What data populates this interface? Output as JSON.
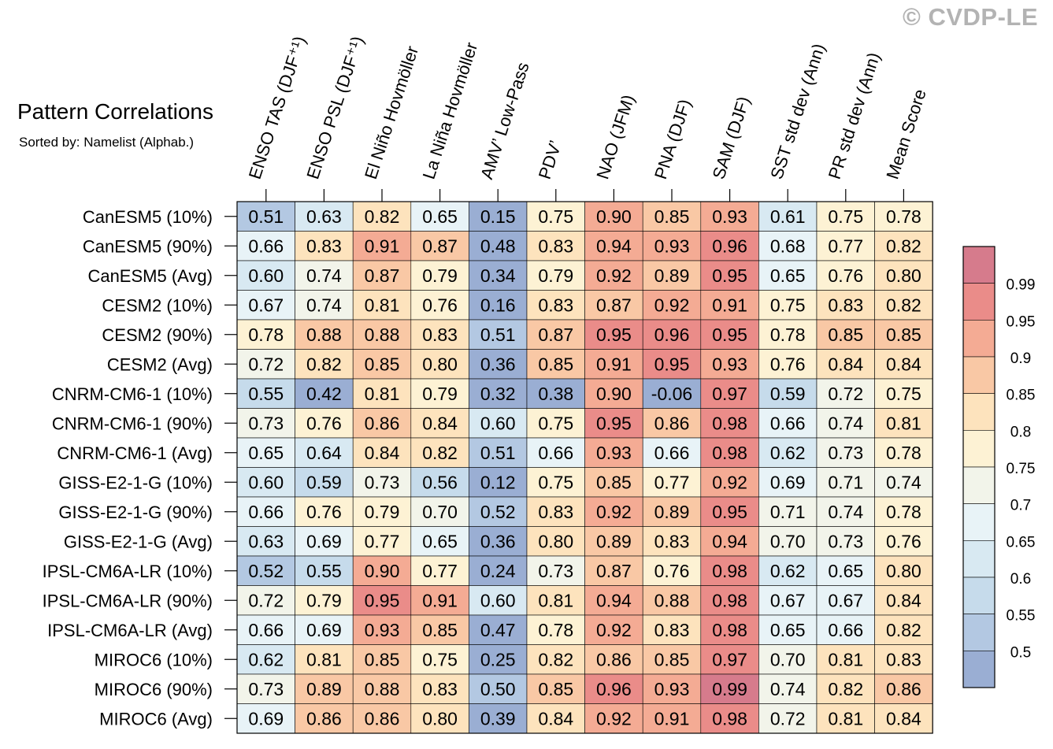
{
  "watermark": "© CVDP-LE",
  "chart_data": {
    "type": "heatmap",
    "title": "Pattern Correlations",
    "subtitle": "Sorted by: Namelist (Alphab.)",
    "columns": [
      "ENSO TAS (DJF⁺¹)",
      "ENSO PSL (DJF⁺¹)",
      "El Niño Hovmöller",
      "La Niña Hovmöller",
      "AMV’ Low-Pass",
      "PDV’",
      "NAO (JFM)",
      "PNA (DJF)",
      "SAM (DJF)",
      "SST std dev (Ann)",
      "PR std dev (Ann)",
      "Mean Score"
    ],
    "rows": [
      "CanESM5 (10%)",
      "CanESM5 (90%)",
      "CanESM5 (Avg)",
      "CESM2 (10%)",
      "CESM2 (90%)",
      "CESM2 (Avg)",
      "CNRM-CM6-1 (10%)",
      "CNRM-CM6-1 (90%)",
      "CNRM-CM6-1 (Avg)",
      "GISS-E2-1-G (10%)",
      "GISS-E2-1-G (90%)",
      "GISS-E2-1-G (Avg)",
      "IPSL-CM6A-LR (10%)",
      "IPSL-CM6A-LR (90%)",
      "IPSL-CM6A-LR (Avg)",
      "MIROC6 (10%)",
      "MIROC6 (90%)",
      "MIROC6 (Avg)"
    ],
    "values": [
      [
        "0.51",
        "0.63",
        "0.82",
        "0.65",
        "0.15",
        "0.75",
        "0.90",
        "0.85",
        "0.93",
        "0.61",
        "0.75",
        "0.78"
      ],
      [
        "0.66",
        "0.83",
        "0.91",
        "0.87",
        "0.48",
        "0.83",
        "0.94",
        "0.93",
        "0.96",
        "0.68",
        "0.77",
        "0.82"
      ],
      [
        "0.60",
        "0.74",
        "0.87",
        "0.79",
        "0.34",
        "0.79",
        "0.92",
        "0.89",
        "0.95",
        "0.65",
        "0.76",
        "0.80"
      ],
      [
        "0.67",
        "0.74",
        "0.81",
        "0.76",
        "0.16",
        "0.83",
        "0.87",
        "0.92",
        "0.91",
        "0.75",
        "0.83",
        "0.82"
      ],
      [
        "0.78",
        "0.88",
        "0.88",
        "0.83",
        "0.51",
        "0.87",
        "0.95",
        "0.96",
        "0.95",
        "0.78",
        "0.85",
        "0.85"
      ],
      [
        "0.72",
        "0.82",
        "0.85",
        "0.80",
        "0.36",
        "0.85",
        "0.91",
        "0.95",
        "0.93",
        "0.76",
        "0.84",
        "0.84"
      ],
      [
        "0.55",
        "0.42",
        "0.81",
        "0.79",
        "0.32",
        "0.38",
        "0.90",
        "-0.06",
        "0.97",
        "0.59",
        "0.72",
        "0.75"
      ],
      [
        "0.73",
        "0.76",
        "0.86",
        "0.84",
        "0.60",
        "0.75",
        "0.95",
        "0.86",
        "0.98",
        "0.66",
        "0.74",
        "0.81"
      ],
      [
        "0.65",
        "0.64",
        "0.84",
        "0.82",
        "0.51",
        "0.66",
        "0.93",
        "0.66",
        "0.98",
        "0.62",
        "0.73",
        "0.78"
      ],
      [
        "0.60",
        "0.59",
        "0.73",
        "0.56",
        "0.12",
        "0.75",
        "0.85",
        "0.77",
        "0.92",
        "0.69",
        "0.71",
        "0.74"
      ],
      [
        "0.66",
        "0.76",
        "0.79",
        "0.70",
        "0.52",
        "0.83",
        "0.92",
        "0.89",
        "0.95",
        "0.71",
        "0.74",
        "0.78"
      ],
      [
        "0.63",
        "0.69",
        "0.77",
        "0.65",
        "0.36",
        "0.80",
        "0.89",
        "0.83",
        "0.94",
        "0.70",
        "0.73",
        "0.76"
      ],
      [
        "0.52",
        "0.55",
        "0.90",
        "0.77",
        "0.24",
        "0.73",
        "0.87",
        "0.76",
        "0.98",
        "0.62",
        "0.65",
        "0.80"
      ],
      [
        "0.72",
        "0.79",
        "0.95",
        "0.91",
        "0.60",
        "0.81",
        "0.94",
        "0.88",
        "0.98",
        "0.67",
        "0.67",
        "0.84"
      ],
      [
        "0.66",
        "0.69",
        "0.93",
        "0.85",
        "0.47",
        "0.78",
        "0.92",
        "0.83",
        "0.98",
        "0.65",
        "0.66",
        "0.82"
      ],
      [
        "0.62",
        "0.81",
        "0.85",
        "0.75",
        "0.25",
        "0.82",
        "0.86",
        "0.85",
        "0.97",
        "0.70",
        "0.81",
        "0.83"
      ],
      [
        "0.73",
        "0.89",
        "0.88",
        "0.83",
        "0.50",
        "0.85",
        "0.96",
        "0.93",
        "0.99",
        "0.74",
        "0.82",
        "0.86"
      ],
      [
        "0.69",
        "0.86",
        "0.86",
        "0.80",
        "0.39",
        "0.84",
        "0.92",
        "0.91",
        "0.98",
        "0.72",
        "0.81",
        "0.84"
      ]
    ],
    "colorbar": {
      "levels": [
        0.5,
        0.55,
        0.6,
        0.65,
        0.7,
        0.75,
        0.8,
        0.85,
        0.9,
        0.95,
        0.99
      ],
      "labels": [
        "0.5",
        "0.55",
        "0.6",
        "0.65",
        "0.7",
        "0.75",
        "0.8",
        "0.85",
        "0.9",
        "0.95",
        "0.99"
      ],
      "colors": [
        "#9aaed3",
        "#b3c8e2",
        "#c6dbeb",
        "#d8e9f2",
        "#e8f3f7",
        "#f2f4ea",
        "#fdf2d4",
        "#fde3bd",
        "#f9c8a5",
        "#f4ab94",
        "#ea8c89",
        "#d67b8c"
      ]
    }
  }
}
